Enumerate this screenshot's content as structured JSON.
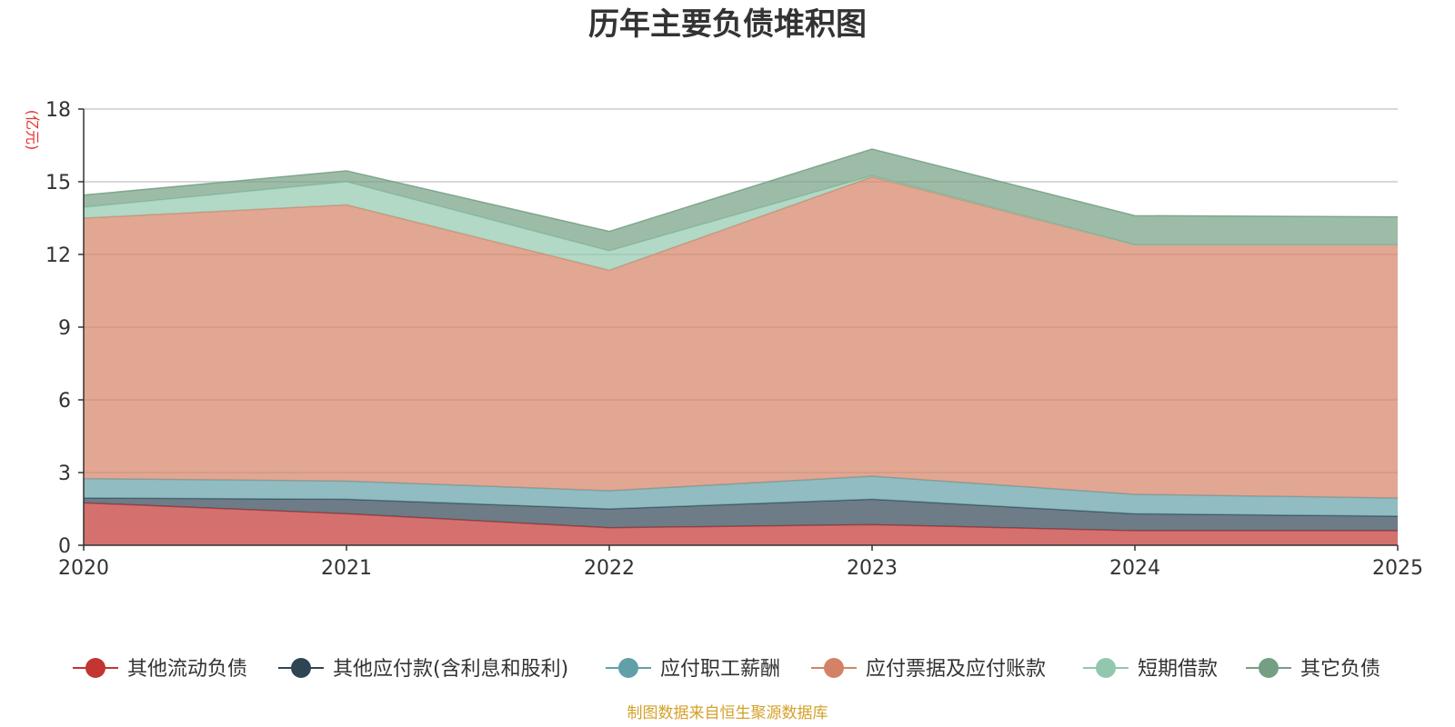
{
  "chart_data": {
    "type": "area",
    "stacked": true,
    "title": "历年主要负债堆积图",
    "y_unit": "(亿元)",
    "x": [
      "2020",
      "2021",
      "2022",
      "2023",
      "2024",
      "2025"
    ],
    "ylim": [
      0,
      18
    ],
    "yticks": [
      "0",
      "3",
      "6",
      "9",
      "12",
      "15",
      "18"
    ],
    "grid": true,
    "legend_position": "bottom",
    "source": "制图数据来自恒生聚源数据库",
    "series": [
      {
        "name": "其他流动负债",
        "color": "#c23531",
        "values": [
          1.75,
          1.3,
          0.72,
          0.85,
          0.6,
          0.6
        ]
      },
      {
        "name": "其他应付款(含利息和股利)",
        "color": "#2f4554",
        "values": [
          0.2,
          0.6,
          0.78,
          1.05,
          0.7,
          0.6
        ]
      },
      {
        "name": "应付职工薪酬",
        "color": "#61a0a8",
        "values": [
          0.8,
          0.75,
          0.75,
          0.95,
          0.8,
          0.75
        ]
      },
      {
        "name": "应付票据及应付账款",
        "color": "#d48265",
        "values": [
          10.75,
          11.4,
          9.1,
          12.35,
          10.3,
          10.45
        ]
      },
      {
        "name": "短期借款",
        "color": "#91c7ae",
        "values": [
          0.45,
          0.95,
          0.8,
          0.05,
          0.0,
          0.0
        ]
      },
      {
        "name": "其它负债",
        "color": "#749f83",
        "values": [
          0.5,
          0.45,
          0.8,
          1.1,
          1.2,
          1.15
        ]
      }
    ]
  }
}
